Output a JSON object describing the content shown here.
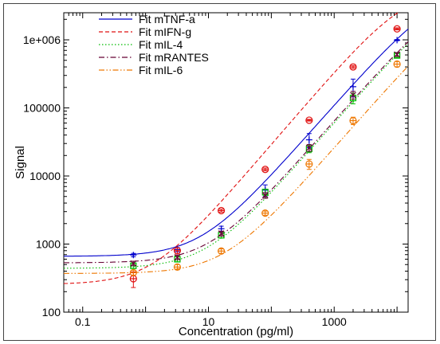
{
  "chart_data": {
    "type": "scatter",
    "title": "",
    "xlabel": "Concentration (pg/ml)",
    "ylabel": "Signal",
    "x_scale": "log",
    "y_scale": "log",
    "xlim": [
      0.05,
      15000
    ],
    "ylim": [
      100,
      2500000
    ],
    "x_ticks": [
      0.1,
      10,
      1000
    ],
    "x_tick_labels": [
      "0.1",
      "10",
      "1000"
    ],
    "y_ticks": [
      100,
      1000,
      10000,
      100000,
      1000000
    ],
    "y_tick_labels": [
      "100",
      "1000",
      "10000",
      "100000",
      "1e+006"
    ],
    "grid": false,
    "legend_position": "top-left",
    "x": [
      0.64,
      3.2,
      16,
      80,
      400,
      2000,
      10000
    ],
    "series": [
      {
        "name": "Fit mTNF-a",
        "color": "#0000cc",
        "line_style": "solid",
        "marker": "plus",
        "values": [
          690,
          830,
          1680,
          6200,
          34000,
          205000,
          990000
        ],
        "errors": [
          40,
          60,
          150,
          1200,
          8000,
          60000,
          20000
        ],
        "fit": {
          "bottom": 660,
          "top": 6000000,
          "ec50": 45000,
          "hill": 1.05
        }
      },
      {
        "name": "Fit mIFN-g",
        "color": "#e01010",
        "line_style": "dashed",
        "marker": "circle",
        "values": [
          310,
          800,
          3100,
          12500,
          66000,
          400000,
          1450000
        ],
        "errors": [
          80,
          80,
          150,
          600,
          2000,
          20000,
          50000
        ],
        "fit": {
          "bottom": 255,
          "top": 6000000,
          "ec50": 14000,
          "hill": 1.08
        }
      },
      {
        "name": "Fit mIL-4",
        "color": "#00bb00",
        "line_style": "dotted",
        "marker": "square",
        "values": [
          480,
          600,
          1350,
          5800,
          25000,
          140000,
          590000
        ],
        "errors": [
          40,
          50,
          120,
          600,
          3000,
          25000,
          40000
        ],
        "fit": {
          "bottom": 440,
          "top": 6000000,
          "ec50": 80000,
          "hill": 1.05
        }
      },
      {
        "name": "Fit mRANTES",
        "color": "#660033",
        "line_style": "dashdot",
        "marker": "x",
        "values": [
          520,
          640,
          1430,
          5200,
          26000,
          155000,
          610000
        ],
        "errors": [
          40,
          50,
          120,
          500,
          3000,
          20000,
          40000
        ],
        "fit": {
          "bottom": 530,
          "top": 6000000,
          "ec50": 75000,
          "hill": 1.05
        }
      },
      {
        "name": "Fit mIL-6",
        "color": "#ee7700",
        "line_style": "dashdotdot",
        "marker": "circle",
        "values": [
          380,
          460,
          790,
          2850,
          15000,
          65000,
          440000
        ],
        "errors": [
          30,
          40,
          60,
          200,
          2500,
          8000,
          40000
        ],
        "fit": {
          "bottom": 370,
          "top": 6000000,
          "ec50": 180000,
          "hill": 1.05
        }
      }
    ]
  }
}
